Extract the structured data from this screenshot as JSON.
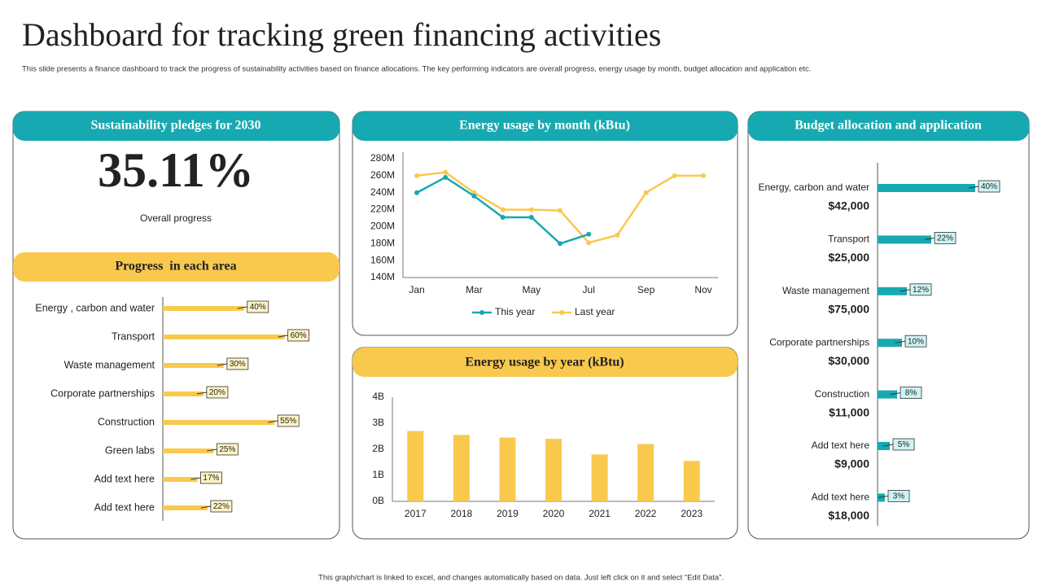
{
  "title": "Dashboard for tracking green financing activities",
  "subtitle": "This slide presents a finance dashboard to track the progress of sustainability activities based on finance allocations. The key performing indicators are overall progress, energy usage by month, budget allocation and application etc.",
  "footer": "This graph/chart is linked to excel, and changes automatically based on data. Just left click on it and select “Edit Data”.",
  "pledge": {
    "heading": "Sustainability pledges for 2030",
    "value": "35.11%",
    "caption": "Overall progress"
  },
  "chart_data": [
    {
      "type": "hbar",
      "title": "Progress  in each area",
      "color": "#f9c94e",
      "categories": [
        "Energy , carbon and water",
        "Transport",
        "Waste management",
        "Corporate partnerships",
        "Construction",
        "Green labs",
        "Add text here",
        "Add text here"
      ],
      "values": [
        40,
        60,
        30,
        20,
        55,
        25,
        17,
        22
      ],
      "value_labels": [
        "40%",
        "60%",
        "30%",
        "20%",
        "55%",
        "25%",
        "17%",
        "22%"
      ],
      "xlim": [
        0,
        85
      ]
    },
    {
      "type": "line",
      "title": "Energy usage by month (kBtu)",
      "categories": [
        "Jan",
        null,
        "Mar",
        null,
        "May",
        null,
        "Jul",
        null,
        "Sep",
        null,
        "Nov"
      ],
      "series": [
        {
          "name": "This year",
          "color": "#17a9b1",
          "values": [
            240,
            258,
            236,
            211,
            211,
            180,
            191,
            null,
            null,
            null,
            null
          ]
        },
        {
          "name": "Last year",
          "color": "#f9c94e",
          "values": [
            260,
            264,
            240,
            220,
            220,
            219,
            181,
            190,
            240,
            260,
            260
          ]
        }
      ],
      "ylim": [
        140,
        280
      ],
      "yticks": [
        {
          "value": 140,
          "label": "140M"
        },
        {
          "value": 160,
          "label": "160M"
        },
        {
          "value": 180,
          "label": "180M"
        },
        {
          "value": 200,
          "label": "200M"
        },
        {
          "value": 220,
          "label": "220M"
        },
        {
          "value": 240,
          "label": "240M"
        },
        {
          "value": 260,
          "label": "260M"
        },
        {
          "value": 280,
          "label": "280M"
        }
      ],
      "legend": "bottom"
    },
    {
      "type": "bar",
      "title": "Energy usage by year (kBtu)",
      "color": "#f9c94e",
      "categories": [
        "2017",
        "2018",
        "2019",
        "2020",
        "2021",
        "2022",
        "2023"
      ],
      "values": [
        2.7,
        2.55,
        2.45,
        2.4,
        1.8,
        2.2,
        1.55
      ],
      "ylim": [
        0,
        4
      ],
      "yticks": [
        {
          "value": 0,
          "label": "0B"
        },
        {
          "value": 1,
          "label": "1B"
        },
        {
          "value": 2,
          "label": "2B"
        },
        {
          "value": 3,
          "label": "3B"
        },
        {
          "value": 4,
          "label": "4B"
        }
      ]
    },
    {
      "type": "hbar",
      "title": "Budget allocation and application",
      "color": "#17a9b1",
      "categories": [
        "Energy, carbon and water",
        "Transport",
        "Waste management",
        "Corporate partnerships",
        "Construction",
        "Add text here",
        "Add text here"
      ],
      "values": [
        40,
        22,
        12,
        10,
        8,
        5,
        3
      ],
      "value_labels": [
        "40%",
        "22%",
        "12%",
        "10%",
        "8%",
        "5%",
        "3%"
      ],
      "amounts": [
        "$42,000",
        "$25,000",
        "$75,000",
        "$30,000",
        "$11,000",
        "$9,000",
        "$18,000"
      ],
      "xlim": [
        0,
        60
      ]
    }
  ]
}
